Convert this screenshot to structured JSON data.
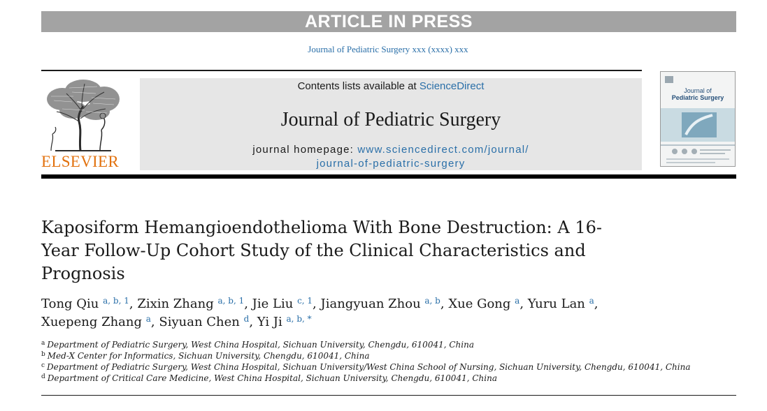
{
  "banner": {
    "text": "ARTICLE IN PRESS"
  },
  "citation": "Journal of Pediatric Surgery xxx (xxxx) xxx",
  "publisher": {
    "name": "ELSEVIER"
  },
  "masthead": {
    "contents_prefix": "Contents lists available at ",
    "contents_link": "ScienceDirect",
    "journal_name": "Journal of Pediatric Surgery",
    "homepage_label": "journal homepage: ",
    "homepage_url_line1": "www.sciencedirect.com/journal/",
    "homepage_url_line2": "journal-of-pediatric-surgery"
  },
  "cover": {
    "title_line1": "Journal of",
    "title_line2": "Pediatric Surgery"
  },
  "article": {
    "title": "Kaposiform Hemangioendothelioma With Bone Destruction: A 16-Year Follow-Up Cohort Study of the Clinical Characteristics and Prognosis",
    "authors": [
      {
        "name": "Tong Qiu",
        "sup": "a, b, 1",
        "sep": ", "
      },
      {
        "name": "Zixin Zhang",
        "sup": "a, b, 1",
        "sep": ", "
      },
      {
        "name": "Jie Liu",
        "sup": "c, 1",
        "sep": ", "
      },
      {
        "name": "Jiangyuan Zhou",
        "sup": "a, b",
        "sep": ", "
      },
      {
        "name": "Xue Gong",
        "sup": "a",
        "sep": ", "
      },
      {
        "name": "Yuru Lan",
        "sup": "a",
        "sep": ", "
      },
      {
        "name": "Xuepeng Zhang",
        "sup": "a",
        "sep": ", "
      },
      {
        "name": "Siyuan Chen",
        "sup": "d",
        "sep": ", "
      },
      {
        "name": "Yi Ji",
        "sup": "a, b, *",
        "sep": ""
      }
    ],
    "affiliations": [
      {
        "key": "a",
        "text": "Department of Pediatric Surgery, West China Hospital, Sichuan University, Chengdu, 610041, China"
      },
      {
        "key": "b",
        "text": "Med-X Center for Informatics, Sichuan University, Chengdu, 610041, China"
      },
      {
        "key": "c",
        "text": "Department of Pediatric Surgery, West China Hospital, Sichuan University/West China School of Nursing, Sichuan University, Chengdu, 610041, China"
      },
      {
        "key": "d",
        "text": "Department of Critical Care Medicine, West China Hospital, Sichuan University, Chengdu, 610041, China"
      }
    ]
  },
  "colors": {
    "link": "#2a6fa8",
    "publisher": "#e2720f",
    "banner": "#a3a3a3",
    "masthead": "#e6e6e6"
  }
}
